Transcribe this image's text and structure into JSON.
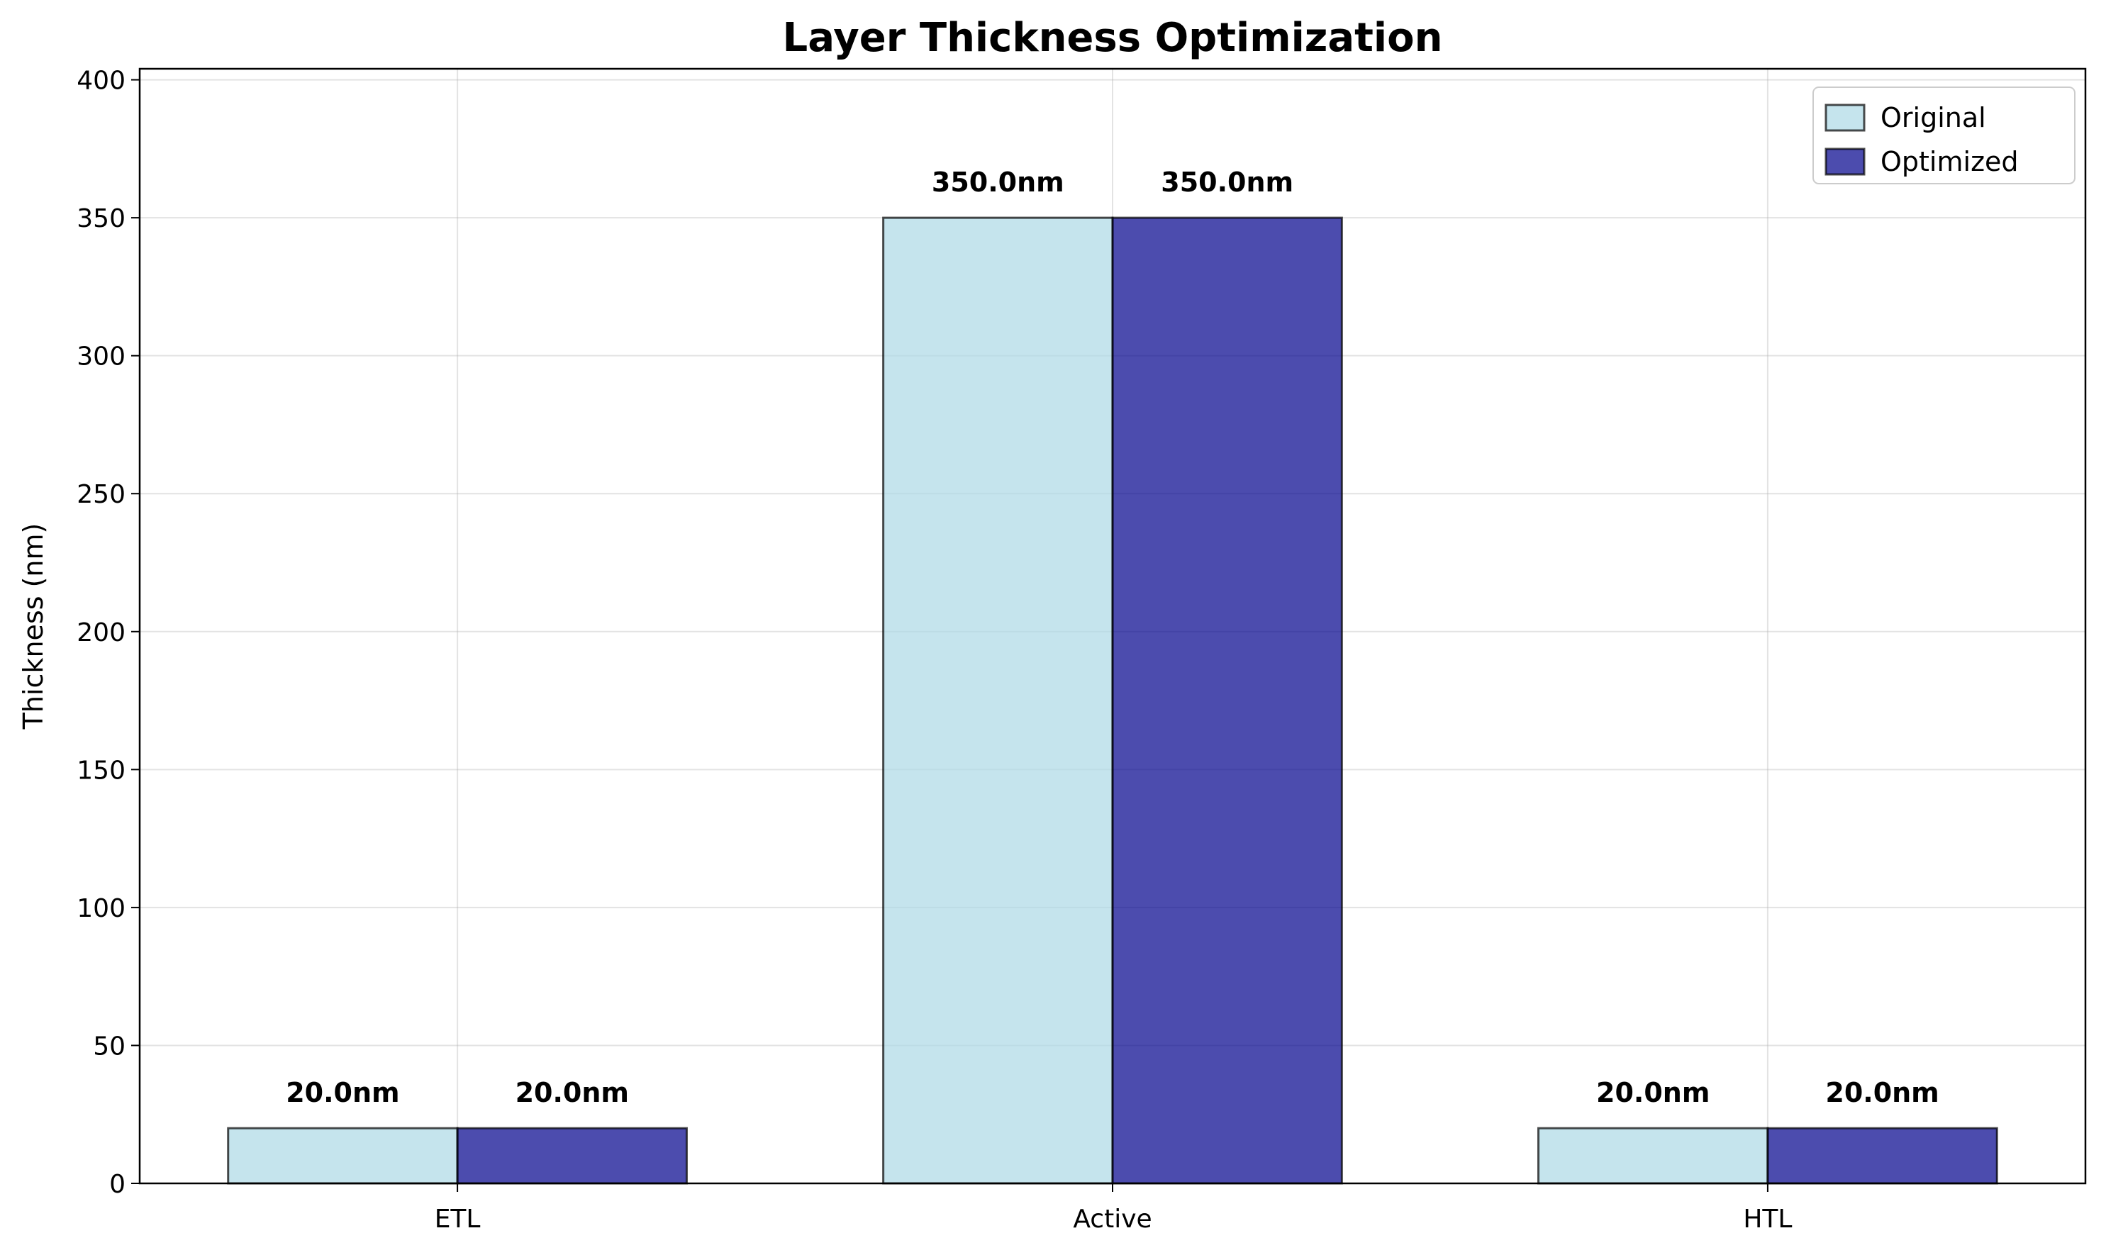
{
  "chart_data": {
    "type": "bar",
    "title": "Layer Thickness Optimization",
    "xlabel": "",
    "ylabel": "Thickness (nm)",
    "categories": [
      "ETL",
      "Active",
      "HTL"
    ],
    "series": [
      {
        "name": "Original",
        "values": [
          20.0,
          350.0,
          20.0
        ],
        "color": "#add8e6",
        "labels": [
          "20.0nm",
          "350.0nm",
          "20.0nm"
        ]
      },
      {
        "name": "Optimized",
        "values": [
          20.0,
          350.0,
          20.0
        ],
        "color": "#00008b",
        "labels": [
          "20.0nm",
          "350.0nm",
          "20.0nm"
        ]
      }
    ],
    "ylim": [
      0,
      400
    ],
    "yticks": [
      "0",
      "50",
      "100",
      "150",
      "200",
      "250",
      "300",
      "350",
      "400"
    ],
    "grid": true,
    "legend_position": "top-right"
  }
}
